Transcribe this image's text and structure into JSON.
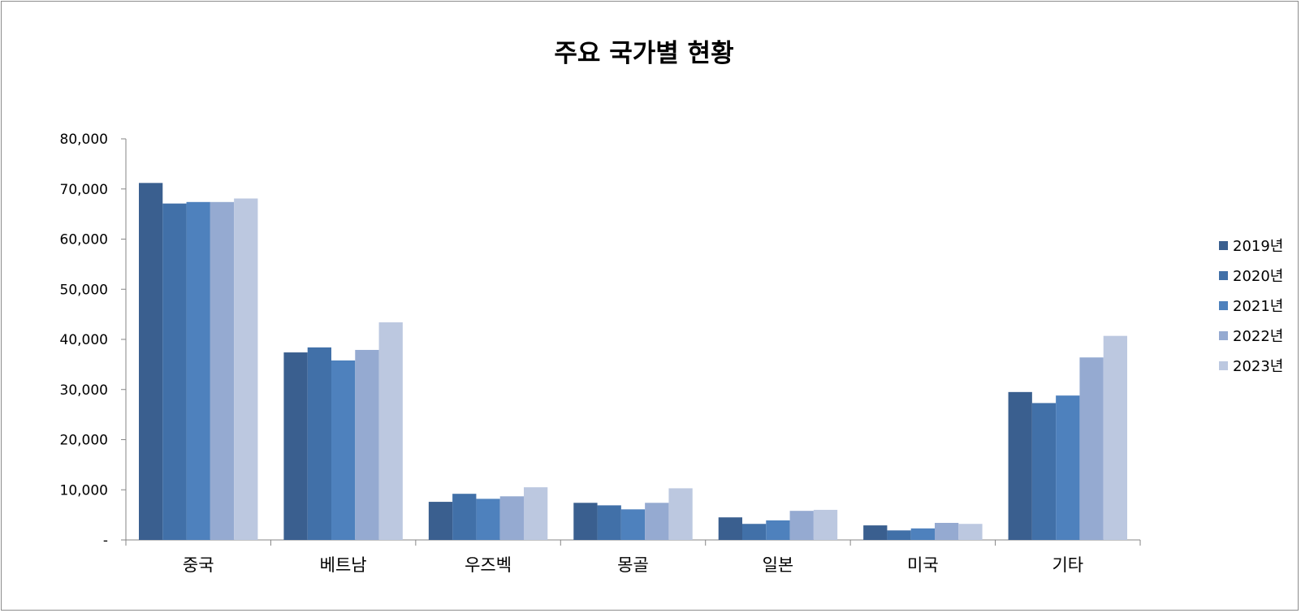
{
  "chart_data": {
    "type": "bar",
    "title": "주요 국가별 현황",
    "categories": [
      "중국",
      "베트남",
      "우즈벡",
      "몽골",
      "일본",
      "미국",
      "기타"
    ],
    "series": [
      {
        "name": "2019년",
        "color": "#3A5F8F",
        "values": [
          71200,
          37400,
          7600,
          7400,
          4500,
          2900,
          29500
        ]
      },
      {
        "name": "2020년",
        "color": "#4170A8",
        "values": [
          67100,
          38400,
          9200,
          6900,
          3200,
          1900,
          27300
        ]
      },
      {
        "name": "2021년",
        "color": "#4E81BD",
        "values": [
          67400,
          35800,
          8200,
          6100,
          3900,
          2300,
          28800
        ]
      },
      {
        "name": "2022년",
        "color": "#95AAD1",
        "values": [
          67400,
          37900,
          8700,
          7400,
          5800,
          3400,
          36400
        ]
      },
      {
        "name": "2023년",
        "color": "#BCC8E0",
        "values": [
          68100,
          43400,
          10500,
          10300,
          6000,
          3200,
          40700
        ]
      }
    ],
    "ylim": [
      0,
      80000
    ],
    "yticks": [
      0,
      10000,
      20000,
      30000,
      40000,
      50000,
      60000,
      70000,
      80000
    ],
    "ytick_labels": [
      "-",
      "10,000",
      "20,000",
      "30,000",
      "40,000",
      "50,000",
      "60,000",
      "70,000",
      "80,000"
    ],
    "xlabel": "",
    "ylabel": "",
    "grid": false,
    "legend_position": "right"
  }
}
